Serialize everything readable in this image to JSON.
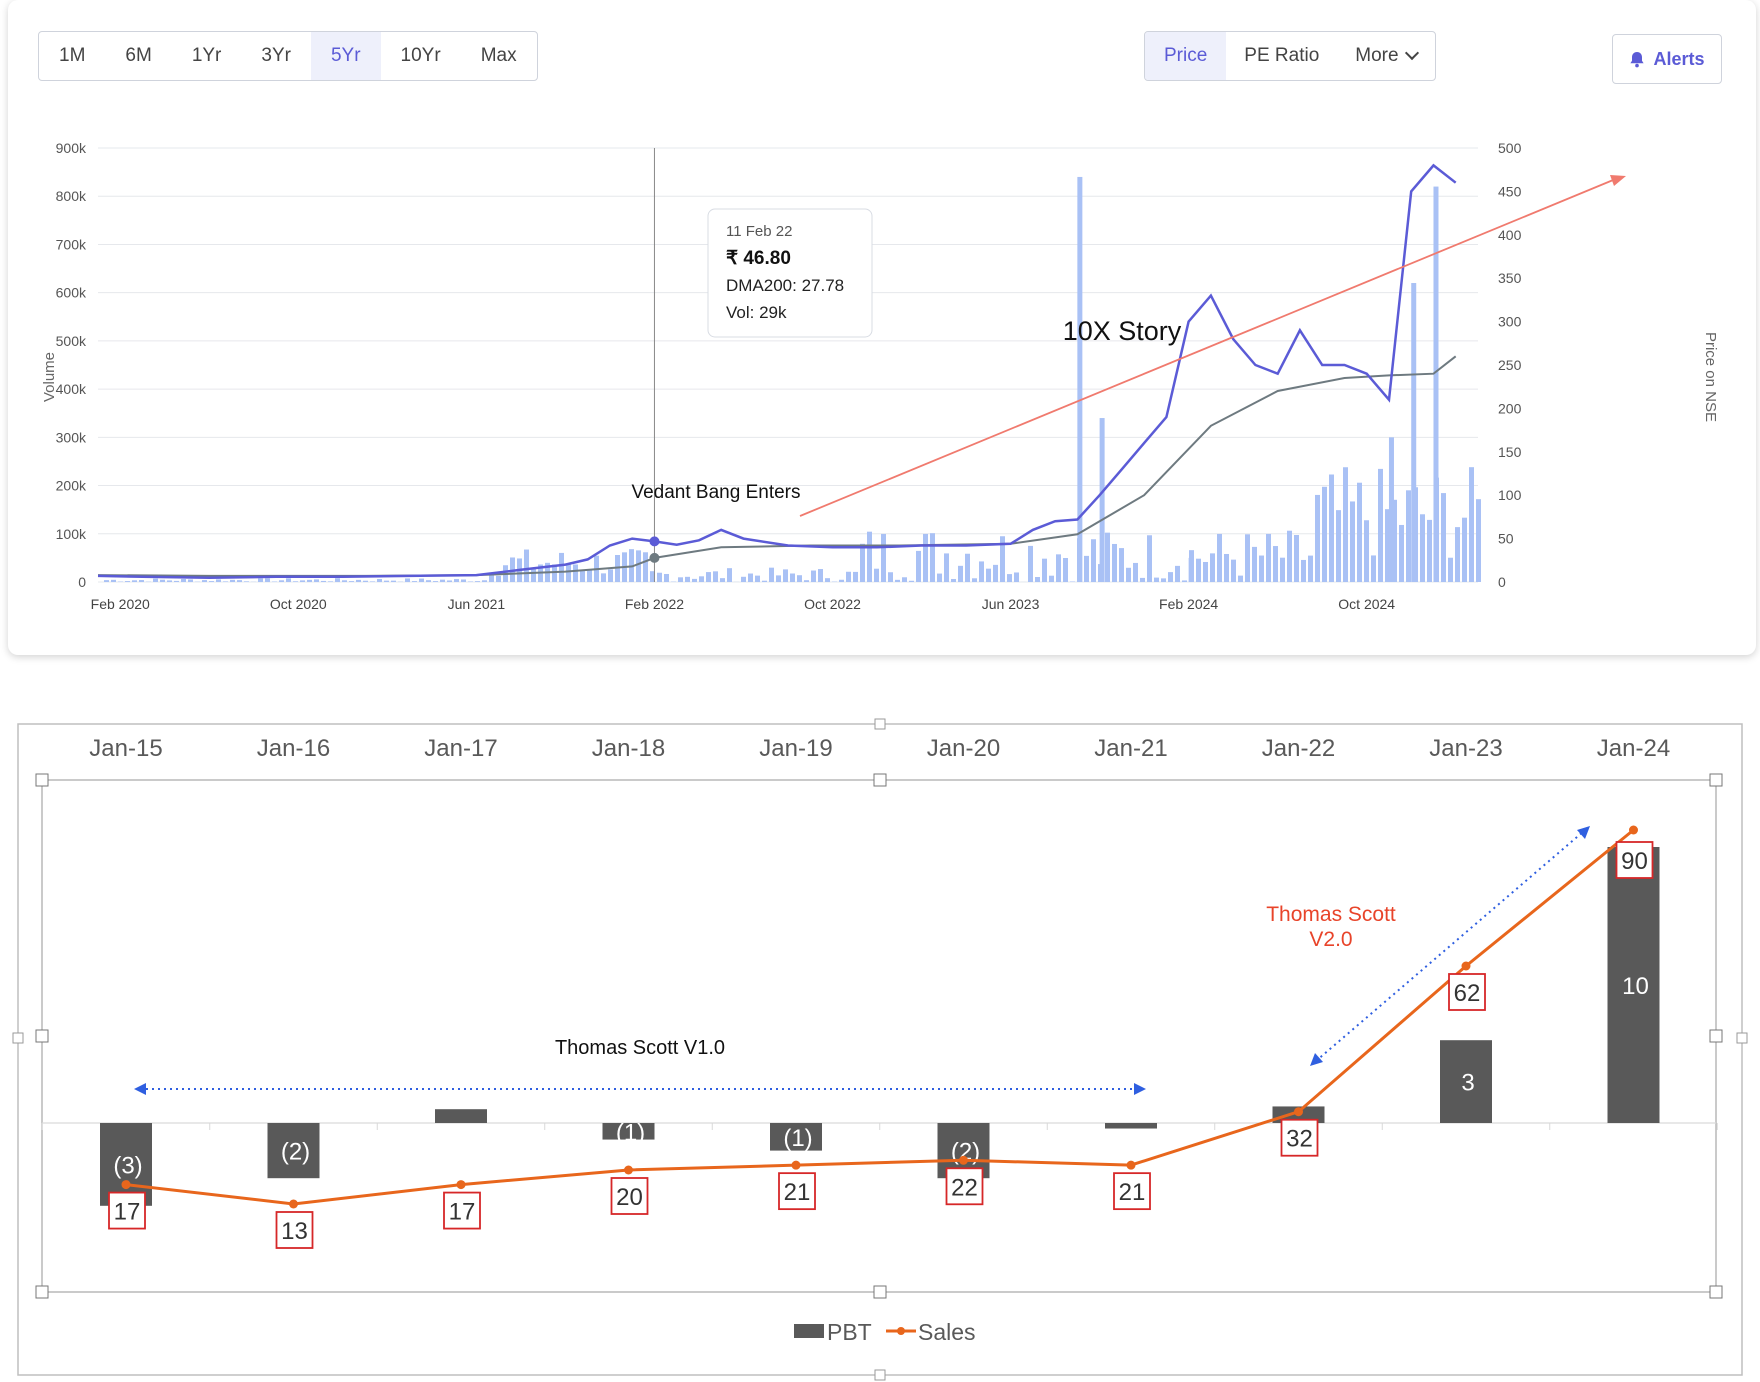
{
  "range_buttons": [
    "1M",
    "6M",
    "1Yr",
    "3Yr",
    "5Yr",
    "10Yr",
    "Max"
  ],
  "active_range": "5Yr",
  "metric_buttons": {
    "price": "Price",
    "pe": "PE Ratio",
    "more": "More"
  },
  "alerts_label": "Alerts",
  "colors": {
    "price": "#5b5bd6",
    "dma": "#6e7a80",
    "volume": "#a9c1f5",
    "arrow": "#f07a6e",
    "pbt": "#595959",
    "sales": "#e8661c",
    "label_box": "#d62728",
    "blue_dash": "#2f5fe0",
    "v2_text": "#e8442a"
  },
  "chart_data": [
    {
      "type": "line",
      "left_axis_label": "Volume",
      "right_axis_label": "Price on NSE",
      "left_ticks": [
        "0",
        "100k",
        "200k",
        "300k",
        "400k",
        "500k",
        "600k",
        "700k",
        "800k",
        "900k"
      ],
      "right_ticks": [
        "0",
        "50",
        "100",
        "150",
        "200",
        "250",
        "300",
        "350",
        "400",
        "450",
        "500"
      ],
      "x_ticks": [
        "Feb 2020",
        "Oct 2020",
        "Jun 2021",
        "Feb 2022",
        "Oct 2022",
        "Jun 2023",
        "Feb 2024",
        "Oct 2024"
      ],
      "x_range": [
        "2020-01",
        "2025-03"
      ],
      "price_series": [
        [
          "2020-01",
          7
        ],
        [
          "2020-03",
          6
        ],
        [
          "2020-06",
          5
        ],
        [
          "2020-09",
          6
        ],
        [
          "2020-12",
          6
        ],
        [
          "2021-03",
          7
        ],
        [
          "2021-06",
          8
        ],
        [
          "2021-08",
          14
        ],
        [
          "2021-10",
          20
        ],
        [
          "2021-11",
          26
        ],
        [
          "2021-12",
          42
        ],
        [
          "2022-01",
          50
        ],
        [
          "2022-02",
          46.8
        ],
        [
          "2022-03",
          43
        ],
        [
          "2022-04",
          48
        ],
        [
          "2022-05",
          60
        ],
        [
          "2022-06",
          50
        ],
        [
          "2022-08",
          42
        ],
        [
          "2022-10",
          40
        ],
        [
          "2022-12",
          40
        ],
        [
          "2023-02",
          42
        ],
        [
          "2023-04",
          42
        ],
        [
          "2023-06",
          44
        ],
        [
          "2023-07",
          60
        ],
        [
          "2023-08",
          70
        ],
        [
          "2023-09",
          72
        ],
        [
          "2023-10",
          100
        ],
        [
          "2023-11",
          130
        ],
        [
          "2023-12",
          160
        ],
        [
          "2024-01",
          190
        ],
        [
          "2024-02",
          300
        ],
        [
          "2024-03",
          330
        ],
        [
          "2024-04",
          280
        ],
        [
          "2024-05",
          250
        ],
        [
          "2024-06",
          240
        ],
        [
          "2024-07",
          290
        ],
        [
          "2024-08",
          250
        ],
        [
          "2024-09",
          250
        ],
        [
          "2024-10",
          240
        ],
        [
          "2024-11",
          210
        ],
        [
          "2024-12",
          450
        ],
        [
          "2025-01",
          480
        ],
        [
          "2025-02",
          460
        ]
      ],
      "dma200_series": [
        [
          "2020-01",
          8
        ],
        [
          "2020-06",
          7
        ],
        [
          "2021-01",
          7
        ],
        [
          "2021-06",
          8
        ],
        [
          "2021-10",
          12
        ],
        [
          "2022-01",
          18
        ],
        [
          "2022-02",
          27.78
        ],
        [
          "2022-05",
          40
        ],
        [
          "2022-09",
          42
        ],
        [
          "2023-01",
          42
        ],
        [
          "2023-06",
          44
        ],
        [
          "2023-09",
          55
        ],
        [
          "2023-12",
          100
        ],
        [
          "2024-03",
          180
        ],
        [
          "2024-06",
          220
        ],
        [
          "2024-09",
          235
        ],
        [
          "2024-11",
          238
        ],
        [
          "2025-01",
          240
        ],
        [
          "2025-02",
          260
        ]
      ],
      "volume_spikes": [
        [
          "2023-09",
          840
        ],
        [
          "2023-10",
          340
        ],
        [
          "2024-02",
          50
        ],
        [
          "2024-11",
          300
        ],
        [
          "2024-12",
          620
        ],
        [
          "2025-01",
          820
        ]
      ],
      "tooltip": {
        "date": "11 Feb 22",
        "price": "₹ 46.80",
        "dma": "DMA200: 27.78",
        "vol": "Vol: 29k"
      },
      "annotations": {
        "enter": "Vedant Bang Enters",
        "story": "10X Story"
      }
    },
    {
      "type": "bar",
      "categories": [
        "Jan-15",
        "Jan-16",
        "Jan-17",
        "Jan-18",
        "Jan-19",
        "Jan-20",
        "Jan-21",
        "Jan-22",
        "Jan-23",
        "Jan-24"
      ],
      "series": [
        {
          "name": "PBT",
          "values": [
            -3,
            -2,
            0.5,
            -0.6,
            -1,
            -2,
            -0.2,
            0.6,
            3,
            10
          ],
          "labels": [
            "(3)",
            "(2)",
            "",
            "(1)",
            "(1)",
            "(2)",
            "",
            "",
            "3",
            "10"
          ]
        },
        {
          "name": "Sales",
          "values": [
            17,
            13,
            17,
            20,
            21,
            22,
            21,
            32,
            62,
            90
          ],
          "labels": [
            "17",
            "13",
            "17",
            "20",
            "21",
            "22",
            "21",
            "32",
            "62",
            "90"
          ]
        }
      ],
      "annotations": {
        "v1": "Thomas Scott V1.0",
        "v2_line1": "Thomas Scott",
        "v2_line2": "V2.0"
      }
    }
  ]
}
